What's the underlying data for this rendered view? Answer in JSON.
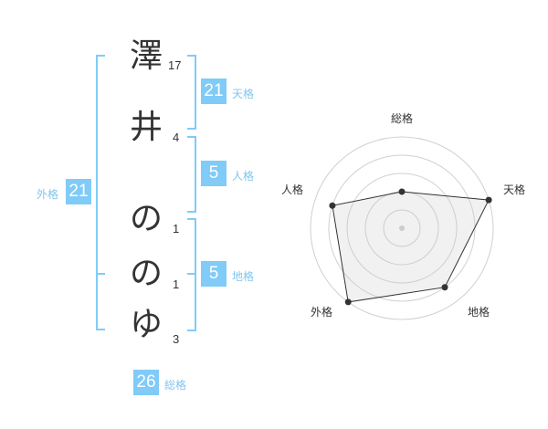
{
  "name": {
    "characters": [
      {
        "char": "澤",
        "strokes": "17"
      },
      {
        "char": "井",
        "strokes": "4"
      },
      {
        "char": "の",
        "strokes": "1"
      },
      {
        "char": "の",
        "strokes": "1"
      },
      {
        "char": "ゆ",
        "strokes": "3"
      }
    ]
  },
  "kaku": {
    "tenkaku": {
      "label": "天格",
      "value": "21"
    },
    "jinkaku": {
      "label": "人格",
      "value": "5"
    },
    "chikaku": {
      "label": "地格",
      "value": "5"
    },
    "gaikaku": {
      "label": "外格",
      "value": "21"
    },
    "soukaku": {
      "label": "総格",
      "value": "26"
    }
  },
  "colors": {
    "accent": "#80cbf8",
    "label": "#7fc6ef",
    "text": "#333333"
  },
  "chart_data": {
    "type": "radar",
    "categories": [
      "総格",
      "天格",
      "地格",
      "外格",
      "人格"
    ],
    "values": [
      2,
      5,
      4,
      5,
      4
    ],
    "rlim": [
      0,
      5
    ],
    "rings": 5,
    "grid": true
  }
}
